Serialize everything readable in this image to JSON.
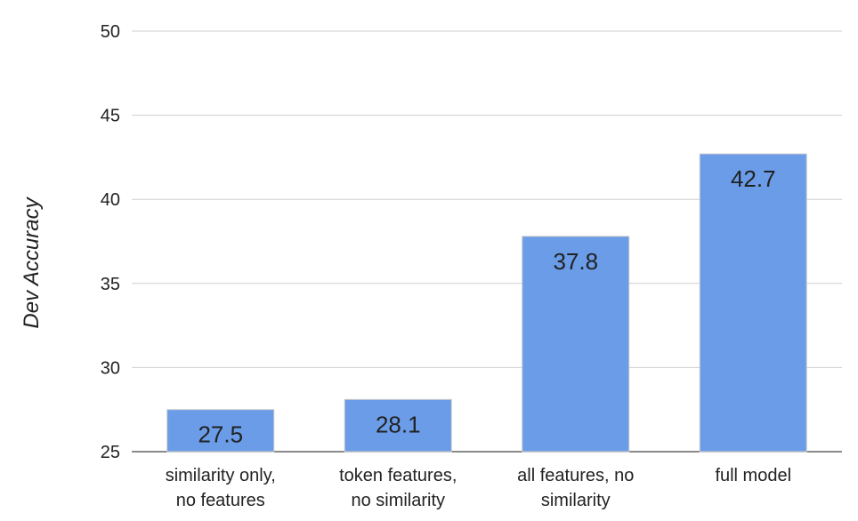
{
  "chart_data": {
    "type": "bar",
    "categories": [
      [
        "similarity only,",
        "no features"
      ],
      [
        "token features,",
        "no similarity"
      ],
      [
        "all features, no",
        "similarity"
      ],
      [
        "full model"
      ]
    ],
    "values": [
      27.5,
      28.1,
      37.8,
      42.7
    ],
    "data_labels": [
      "27.5",
      "28.1",
      "37.8",
      "42.7"
    ],
    "ylabel": "Dev Accuracy",
    "xlabel": "",
    "ylim": [
      25,
      50
    ],
    "yticks": [
      25,
      30,
      35,
      40,
      45,
      50
    ],
    "grid": true,
    "legend": "none",
    "bar_color": "#6a9ce8"
  }
}
